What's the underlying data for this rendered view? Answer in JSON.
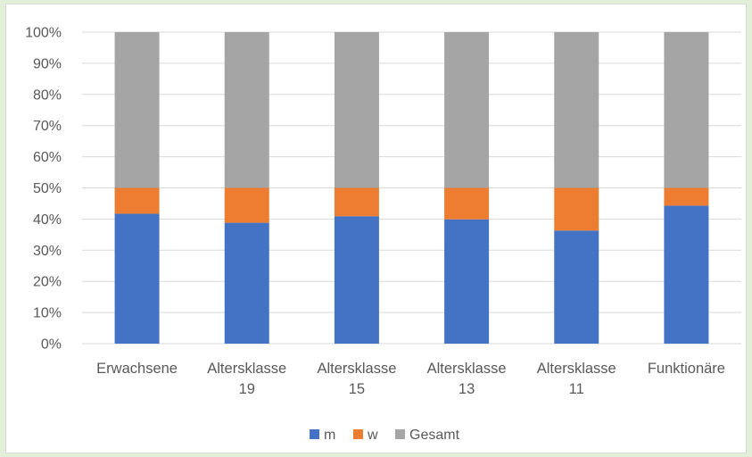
{
  "chart_data": {
    "type": "bar",
    "stacked": true,
    "categories": [
      [
        "Erwachsene"
      ],
      [
        "Altersklasse",
        "19"
      ],
      [
        "Altersklasse",
        "15"
      ],
      [
        "Altersklasse",
        "13"
      ],
      [
        "Altersklasse",
        "11"
      ],
      [
        "Funktionäre"
      ]
    ],
    "series": [
      {
        "name": "m",
        "color": "#4472c4",
        "values": [
          41.7,
          38.8,
          40.9,
          39.9,
          36.3,
          44.3
        ]
      },
      {
        "name": "w",
        "color": "#ed7d31",
        "values": [
          8.3,
          11.2,
          9.1,
          10.1,
          13.7,
          5.7
        ]
      },
      {
        "name": "Gesamt",
        "color": "#a5a5a5",
        "values": [
          50,
          50,
          50,
          50,
          50,
          50
        ]
      }
    ],
    "ylim": [
      0,
      100
    ],
    "y_ticks": [
      "0%",
      "10%",
      "20%",
      "30%",
      "40%",
      "50%",
      "60%",
      "70%",
      "80%",
      "90%",
      "100%"
    ],
    "grid": true,
    "legend_position": "bottom"
  }
}
